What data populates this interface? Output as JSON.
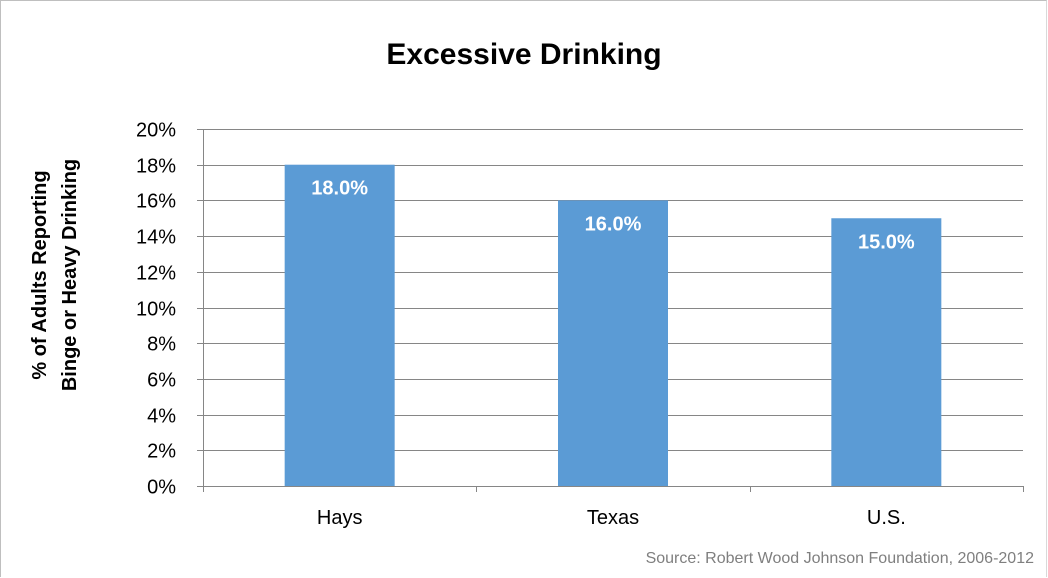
{
  "chart_data": {
    "type": "bar",
    "title": "Excessive Drinking",
    "ylabel_lines": [
      "% of Adults Reporting",
      "Binge or Heavy Drinking"
    ],
    "xlabel": "",
    "categories": [
      "Hays",
      "Texas",
      "U.S."
    ],
    "values": [
      18.0,
      16.0,
      15.0
    ],
    "data_labels": [
      "18.0%",
      "16.0%",
      "15.0%"
    ],
    "ylim": [
      0,
      20
    ],
    "y_ticks": [
      0,
      2,
      4,
      6,
      8,
      10,
      12,
      14,
      16,
      18,
      20
    ],
    "y_tick_labels": [
      "0%",
      "2%",
      "4%",
      "6%",
      "8%",
      "10%",
      "12%",
      "14%",
      "16%",
      "18%",
      "20%"
    ],
    "grid": true,
    "legend": "none",
    "bar_color": "#5b9bd5",
    "gridline_color": "#868686",
    "data_label_color": "#ffffff",
    "source": "Source: Robert Wood Johnson Foundation, 2006-2012"
  }
}
